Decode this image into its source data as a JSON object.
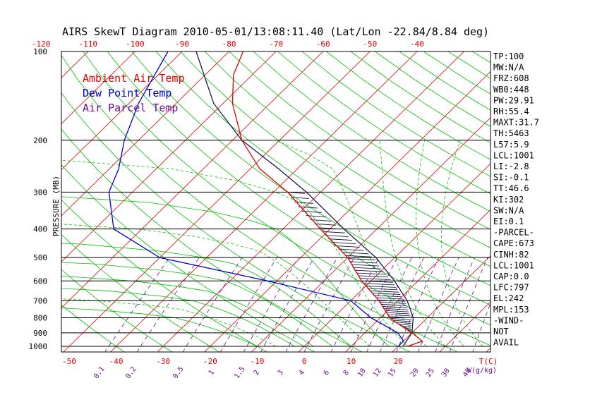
{
  "title": "AIRS SkewT Diagram 2010-05-01/13:08:11.40 (Lat/Lon -22.84/8.84 deg)",
  "ylabel": "PRESSURE (MB)",
  "x_unit_label": "T(C)",
  "mixing_unit_label": "W(g/kg)",
  "legend": [
    {
      "name": "Ambient Air Temp",
      "color": "#e00000"
    },
    {
      "name": "Dew Point Temp",
      "color": "#0000d0"
    },
    {
      "name": "Air Parcel Temp",
      "color": "#6a0d91"
    }
  ],
  "colors": {
    "temp": "#e00000",
    "dew": "#0000d0",
    "parcel": "#1a1a4a",
    "isotherm": "#e00000",
    "dry_adiabat": "#00c000",
    "moist_adiabat": "#00c000",
    "mixing": "#6a0d91",
    "isobar": "#000000"
  },
  "indices": [
    "TP:100",
    "MW:N/A",
    "FRZ:608",
    "WB0:448",
    "PW:29.91",
    "RH:55.4",
    "MAXT:31.7",
    "TH:5463",
    "L57:5.9",
    "LCL:1001",
    "LI:-2.8",
    "SI:-0.1",
    "TT:46.6",
    "KI:302",
    "SW:N/A",
    "EI:0.1",
    "-PARCEL-",
    "CAPE:673",
    "CINH:82",
    "LCL:1001",
    "CAP:0.0",
    "LFC:797",
    "EL:242",
    "MPL:153",
    "-WIND-",
    "NOT",
    "AVAIL"
  ],
  "chart_data": {
    "type": "line",
    "title": "AIRS SkewT Diagram 2010-05-01/13:08:11.40 (Lat/Lon -22.84/8.84 deg)",
    "xlabel": "T(C)",
    "ylabel": "PRESSURE (MB)",
    "pressure_ticks": [
      100,
      200,
      300,
      400,
      500,
      600,
      700,
      800,
      900,
      1000
    ],
    "bottom_temp_ticks": [
      -50,
      -40,
      -30,
      -20,
      -10,
      0,
      10,
      20
    ],
    "top_temp_ticks": [
      -120,
      -110,
      -100,
      -90,
      -80,
      -70,
      -60,
      -50,
      -40
    ],
    "mixing_ratio_ticks": [
      "0.1",
      "0.2",
      "0.5",
      "1",
      "1.5",
      "2",
      "3",
      "4",
      "6",
      "8",
      "10",
      "12",
      "15",
      "20",
      "25",
      "30",
      "40"
    ],
    "ylim": [
      1050,
      100
    ],
    "xlim_bottom": [
      -50,
      20
    ],
    "grid": true,
    "legend_position": "top-left",
    "series": [
      {
        "name": "Ambient Air Temp",
        "points": [
          [
            1000,
            22
          ],
          [
            960,
            24
          ],
          [
            900,
            20
          ],
          [
            850,
            16
          ],
          [
            800,
            12
          ],
          [
            700,
            6
          ],
          [
            600,
            -2
          ],
          [
            500,
            -10
          ],
          [
            400,
            -22
          ],
          [
            300,
            -37
          ],
          [
            250,
            -48
          ],
          [
            200,
            -58
          ],
          [
            150,
            -68
          ],
          [
            120,
            -74
          ],
          [
            100,
            -77
          ]
        ]
      },
      {
        "name": "Dew Point Temp",
        "points": [
          [
            1000,
            20
          ],
          [
            960,
            20
          ],
          [
            900,
            17
          ],
          [
            800,
            8
          ],
          [
            700,
            0
          ],
          [
            600,
            -22
          ],
          [
            500,
            -50
          ],
          [
            400,
            -66
          ],
          [
            300,
            -75
          ],
          [
            250,
            -78
          ],
          [
            200,
            -83
          ],
          [
            150,
            -88
          ],
          [
            100,
            -93
          ]
        ]
      },
      {
        "name": "Air Parcel Temp",
        "points": [
          [
            1000,
            21
          ],
          [
            900,
            20
          ],
          [
            800,
            17
          ],
          [
            700,
            12
          ],
          [
            600,
            5
          ],
          [
            500,
            -4
          ],
          [
            400,
            -17
          ],
          [
            300,
            -33
          ],
          [
            250,
            -44
          ],
          [
            200,
            -58
          ],
          [
            150,
            -72
          ],
          [
            100,
            -87
          ]
        ]
      }
    ]
  }
}
